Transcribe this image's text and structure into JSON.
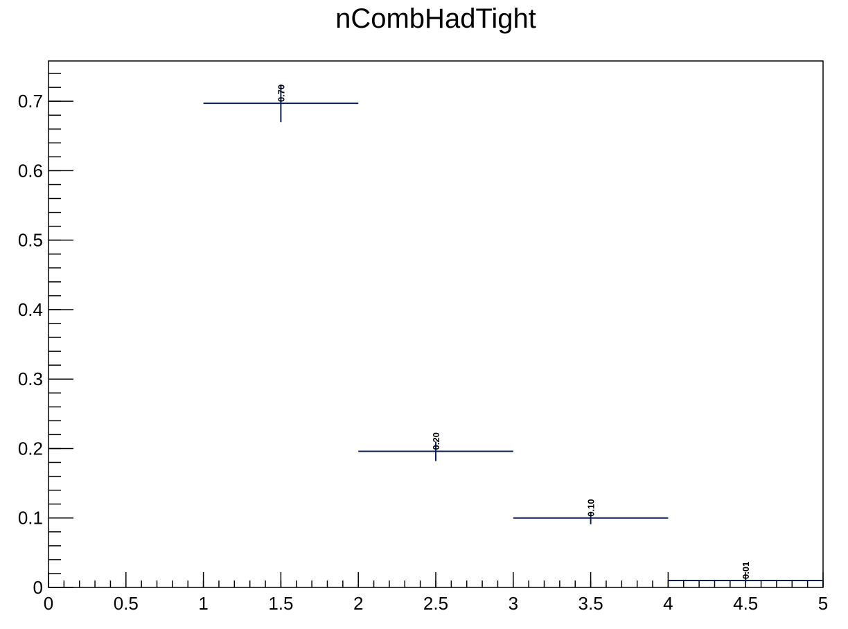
{
  "chart_data": {
    "type": "histogram",
    "title": "nCombHadTight",
    "xlabel": "",
    "ylabel": "",
    "xlim": [
      0,
      5
    ],
    "ylim": [
      0,
      0.758
    ],
    "x_major_ticks": [
      0,
      0.5,
      1,
      1.5,
      2,
      2.5,
      3,
      3.5,
      4,
      4.5,
      5
    ],
    "x_tick_labels": [
      "0",
      "0.5",
      "1",
      "1.5",
      "2",
      "2.5",
      "3",
      "3.5",
      "4",
      "4.5",
      "5"
    ],
    "x_minor_step": 0.1,
    "y_major_ticks": [
      0,
      0.1,
      0.2,
      0.3,
      0.4,
      0.5,
      0.6,
      0.7
    ],
    "y_tick_labels": [
      "0",
      "0.1",
      "0.2",
      "0.3",
      "0.4",
      "0.5",
      "0.6",
      "0.7"
    ],
    "y_minor_step": 0.02,
    "grid": false,
    "line_color": "#0b1f5c",
    "bins": [
      {
        "x_low": 1,
        "x_high": 2,
        "value": 0.697,
        "err_low": 0.027,
        "err_high": 0.027,
        "label": "0.70"
      },
      {
        "x_low": 2,
        "x_high": 3,
        "value": 0.196,
        "err_low": 0.014,
        "err_high": 0.014,
        "label": "0.20"
      },
      {
        "x_low": 3,
        "x_high": 4,
        "value": 0.1,
        "err_low": 0.009,
        "err_high": 0.009,
        "label": "0.10"
      },
      {
        "x_low": 4,
        "x_high": 5,
        "value": 0.01,
        "err_low": 0.003,
        "err_high": 0.003,
        "label": "0.01"
      }
    ]
  }
}
